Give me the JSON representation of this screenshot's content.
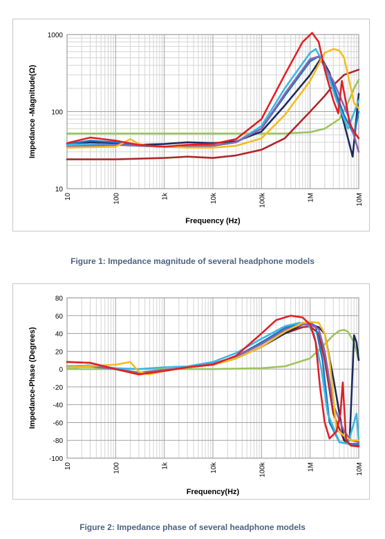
{
  "figure1": {
    "caption": "Figure 1: Impedance magnitude of several headphone models",
    "chart_data": {
      "type": "line",
      "xscale": "log",
      "yscale": "log",
      "xlabel": "Frequency (Hz)",
      "ylabel": "Impedance -Magnitude(Ω)",
      "xlim": [
        10,
        10000000
      ],
      "ylim": [
        10,
        1000
      ],
      "x_ticks": [
        10,
        100,
        1000,
        10000,
        100000,
        1000000,
        10000000
      ],
      "x_tick_labels": [
        "10",
        "100",
        "1k",
        "10k",
        "100k",
        "1M",
        "10M"
      ],
      "y_ticks": [
        10,
        100,
        1000
      ],
      "y_tick_labels": [
        "10",
        "100",
        "1000"
      ],
      "grid": true,
      "series": [
        {
          "color": "#9dc45c",
          "x": [
            10,
            100,
            1000,
            10000,
            50000,
            100000,
            300000,
            1000000,
            2000000,
            4000000,
            6000000,
            8000000,
            10000000
          ],
          "y": [
            52,
            52,
            52,
            52,
            52,
            52,
            52,
            54,
            60,
            80,
            130,
            200,
            260
          ]
        },
        {
          "color": "#b0262a",
          "x": [
            10,
            100,
            1000,
            3000,
            10000,
            30000,
            100000,
            300000,
            1000000,
            2000000,
            3000000,
            5000000,
            10000000
          ],
          "y": [
            24,
            24,
            25,
            26,
            25,
            27,
            32,
            45,
            100,
            160,
            220,
            300,
            350
          ]
        },
        {
          "color": "#1c2a5c",
          "x": [
            10,
            30,
            100,
            300,
            1000,
            3000,
            10000,
            30000,
            100000,
            300000,
            1000000,
            1700000,
            2500000,
            4000000,
            6000000,
            7500000,
            10000000
          ],
          "y": [
            37,
            40,
            39,
            37,
            38,
            40,
            39,
            41,
            55,
            120,
            300,
            500,
            320,
            120,
            45,
            26,
            170
          ]
        },
        {
          "color": "#1f78c1",
          "x": [
            10,
            30,
            100,
            300,
            1000,
            3000,
            10000,
            30000,
            100000,
            300000,
            1000000,
            1500000,
            2500000,
            5000000,
            8000000,
            10000000
          ],
          "y": [
            38,
            42,
            40,
            36,
            35,
            35,
            36,
            40,
            60,
            160,
            450,
            520,
            300,
            90,
            50,
            100
          ]
        },
        {
          "color": "#39b8e6",
          "x": [
            10,
            30,
            100,
            300,
            1000,
            3000,
            10000,
            30000,
            100000,
            300000,
            1000000,
            1300000,
            2000000,
            3500000,
            6000000,
            10000000
          ],
          "y": [
            37,
            38,
            37,
            36,
            35,
            35,
            36,
            40,
            65,
            200,
            580,
            650,
            400,
            140,
            60,
            140
          ]
        },
        {
          "color": "#8866b0",
          "x": [
            10,
            30,
            100,
            300,
            1000,
            3000,
            10000,
            30000,
            100000,
            300000,
            1000000,
            1500000,
            3000000,
            6000000,
            10000000
          ],
          "y": [
            35,
            36,
            37,
            36,
            35,
            35,
            36,
            40,
            60,
            170,
            480,
            520,
            250,
            90,
            30
          ]
        },
        {
          "color": "#f5bc1e",
          "x": [
            10,
            100,
            200,
            300,
            500,
            1000,
            3000,
            10000,
            30000,
            100000,
            300000,
            1000000,
            2000000,
            3000000,
            4000000,
            5000000,
            6000000,
            8000000,
            10000000
          ],
          "y": [
            34,
            35,
            44,
            38,
            36,
            35,
            34,
            34,
            36,
            45,
            90,
            250,
            580,
            650,
            620,
            500,
            300,
            130,
            110
          ]
        },
        {
          "color": "#e21f26",
          "x": [
            10,
            30,
            100,
            300,
            1000,
            3000,
            10000,
            30000,
            100000,
            300000,
            700000,
            1100000,
            1500000,
            2000000,
            3000000,
            3800000,
            4500000,
            5500000,
            6500000,
            8000000,
            10000000
          ],
          "y": [
            39,
            46,
            42,
            37,
            35,
            37,
            38,
            44,
            80,
            300,
            800,
            1050,
            800,
            350,
            140,
            95,
            250,
            130,
            70,
            55,
            45
          ]
        }
      ]
    }
  },
  "figure2": {
    "caption": "Figure 2: Impedance phase of several headphone models",
    "chart_data": {
      "type": "line",
      "xscale": "log",
      "xlabel": "Frequency(Hz)",
      "ylabel": "Impedance-Phase  (Degrees)",
      "xlim": [
        10,
        10000000
      ],
      "ylim": [
        -100,
        80
      ],
      "x_ticks": [
        10,
        100,
        1000,
        10000,
        100000,
        1000000,
        10000000
      ],
      "x_tick_labels": [
        "10",
        "100",
        "1k",
        "10k",
        "100k",
        "1M",
        "10M"
      ],
      "y_ticks": [
        -100,
        -80,
        -60,
        -40,
        -20,
        0,
        20,
        40,
        60,
        80
      ],
      "y_tick_labels": [
        "-100",
        "-80",
        "-60",
        "-40",
        "-20",
        "0",
        "20",
        "40",
        "60",
        "80"
      ],
      "grid": true,
      "series": [
        {
          "color": "#9dc45c",
          "x": [
            10,
            100,
            1000,
            10000,
            100000,
            300000,
            1000000,
            2000000,
            3000000,
            4000000,
            5000000,
            6000000,
            8000000,
            10000000
          ],
          "y": [
            0,
            0,
            0,
            0,
            1,
            3,
            12,
            28,
            38,
            43,
            44,
            42,
            30,
            10
          ]
        },
        {
          "color": "#b0262a",
          "x": [
            10,
            30,
            100,
            300,
            1000,
            3000,
            10000,
            30000,
            100000,
            300000,
            700000,
            1000000,
            1500000,
            2000000,
            3000000,
            5000000,
            7000000,
            10000000
          ],
          "y": [
            8,
            7,
            0,
            -6,
            -2,
            2,
            5,
            12,
            25,
            40,
            47,
            48,
            40,
            10,
            -50,
            -80,
            -86,
            -86
          ]
        },
        {
          "color": "#1c2a5c",
          "x": [
            10,
            30,
            100,
            300,
            1000,
            3000,
            10000,
            30000,
            100000,
            300000,
            700000,
            1000000,
            1500000,
            2000000,
            3000000,
            5000000,
            6500000,
            7500000,
            8000000,
            9000000,
            10000000
          ],
          "y": [
            3,
            4,
            0,
            -5,
            -2,
            2,
            5,
            12,
            25,
            40,
            50,
            50,
            47,
            40,
            -10,
            -80,
            -80,
            0,
            38,
            30,
            10
          ]
        },
        {
          "color": "#1f78c1",
          "x": [
            10,
            30,
            100,
            300,
            1000,
            3000,
            10000,
            30000,
            100000,
            300000,
            700000,
            1000000,
            1300000,
            1800000,
            2500000,
            4000000,
            7000000,
            10000000
          ],
          "y": [
            2,
            3,
            0,
            -4,
            -1,
            2,
            6,
            14,
            30,
            46,
            52,
            52,
            48,
            10,
            -60,
            -82,
            -84,
            -84
          ]
        },
        {
          "color": "#39b8e6",
          "x": [
            10,
            30,
            100,
            300,
            1000,
            3000,
            10000,
            30000,
            100000,
            300000,
            600000,
            900000,
            1200000,
            1700000,
            2300000,
            4000000,
            6000000,
            8000000,
            9000000,
            10000000
          ],
          "y": [
            3,
            4,
            1,
            0,
            2,
            3,
            8,
            18,
            34,
            48,
            52,
            50,
            40,
            0,
            -50,
            -82,
            -84,
            -60,
            -50,
            -80
          ]
        },
        {
          "color": "#8866b0",
          "x": [
            10,
            30,
            100,
            300,
            1000,
            3000,
            10000,
            30000,
            100000,
            300000,
            700000,
            1000000,
            1500000,
            2000000,
            3000000,
            5000000,
            7000000,
            10000000
          ],
          "y": [
            2,
            3,
            0,
            -4,
            -1,
            2,
            6,
            14,
            28,
            44,
            50,
            50,
            45,
            20,
            -40,
            -70,
            -80,
            -82
          ]
        },
        {
          "color": "#f5bc1e",
          "x": [
            10,
            100,
            200,
            300,
            500,
            1000,
            3000,
            10000,
            30000,
            100000,
            300000,
            700000,
            1000000,
            1500000,
            2000000,
            2500000,
            3000000,
            3500000,
            4000000,
            5000000,
            7000000,
            10000000
          ],
          "y": [
            2,
            5,
            8,
            -3,
            -6,
            -2,
            2,
            5,
            12,
            25,
            42,
            52,
            53,
            52,
            40,
            10,
            -30,
            -70,
            -70,
            -75,
            -80,
            -80
          ]
        },
        {
          "color": "#e21f26",
          "x": [
            10,
            30,
            100,
            300,
            1000,
            3000,
            10000,
            30000,
            100000,
            200000,
            400000,
            700000,
            1000000,
            1300000,
            1600000,
            2000000,
            2500000,
            3500000,
            4200000,
            4700000,
            5500000,
            7000000,
            10000000
          ],
          "y": [
            8,
            7,
            0,
            -6,
            -2,
            2,
            5,
            15,
            40,
            55,
            60,
            58,
            50,
            30,
            -20,
            -60,
            -78,
            -70,
            -50,
            -15,
            -80,
            -86,
            -87
          ]
        }
      ]
    }
  }
}
